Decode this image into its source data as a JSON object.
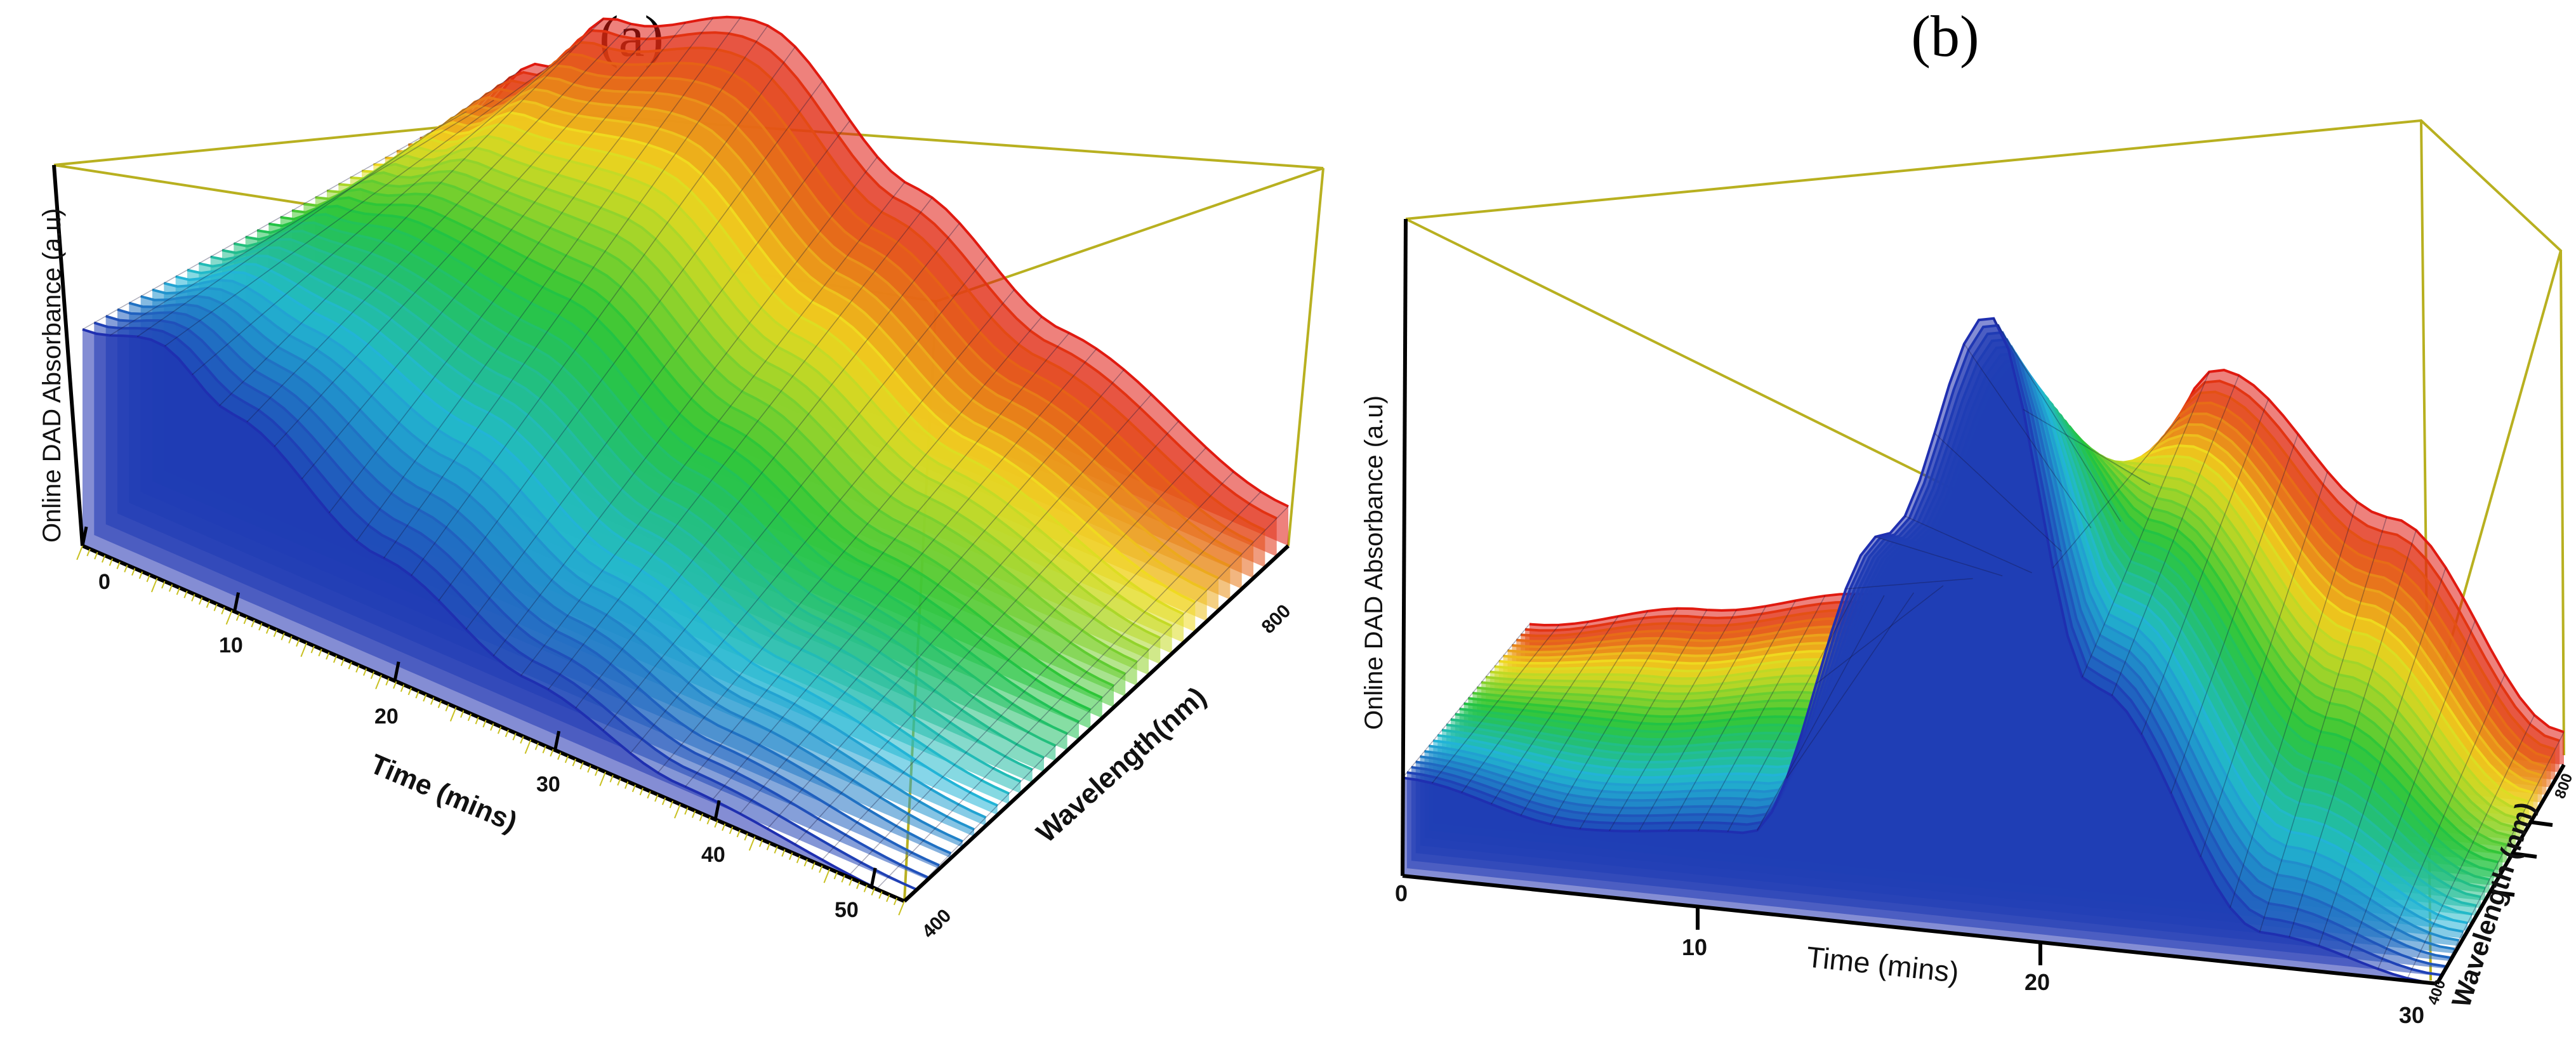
{
  "chart_data": [
    {
      "panel": "a",
      "panel_label": "(a)",
      "type": "surface",
      "zlabel": "Online DAD Absorbance (a.u)",
      "xlabel": "Time (mins)",
      "ylabel": "Wavelength(nm)",
      "x_ticks": [
        "0",
        "10",
        "20",
        "30",
        "40",
        "50"
      ],
      "y_ticks": [
        "400",
        "800"
      ],
      "xlim": [
        0,
        55
      ],
      "ylim": [
        400,
        800
      ],
      "description_values": {
        "x": [
          0,
          5,
          10,
          20,
          30,
          40,
          55
        ],
        "absorbance_at_400nm": [
          0.55,
          0.6,
          0.5,
          0.3,
          0.15,
          0.05,
          0.0
        ],
        "absorbance_at_800nm": [
          0.2,
          0.4,
          0.6,
          0.75,
          0.5,
          0.3,
          0.1
        ]
      },
      "colormap": [
        "#1f2fb0",
        "#22b8d8",
        "#22c43a",
        "#f0e020",
        "#e01a10"
      ]
    },
    {
      "panel": "b",
      "panel_label": "(b)",
      "type": "surface",
      "zlabel": "Online DAD Absorbance  (a.u)",
      "xlabel": "Time (mins)",
      "ylabel": "Wavelength (nm)",
      "x_ticks": [
        "0",
        "10",
        "20",
        "30"
      ],
      "y_ticks": [
        "400",
        "800"
      ],
      "xlim": [
        0,
        30
      ],
      "ylim": [
        400,
        800
      ],
      "description_values": {
        "x": [
          0,
          5,
          10,
          14,
          17,
          20,
          25,
          30
        ],
        "absorbance_at_400nm": [
          0.15,
          0.1,
          0.12,
          0.6,
          0.95,
          0.4,
          0.05,
          0.0
        ],
        "absorbance_at_800nm": [
          0.05,
          0.1,
          0.15,
          0.2,
          0.3,
          0.55,
          0.35,
          0.05
        ]
      },
      "colormap": [
        "#1f2fb0",
        "#22b8d8",
        "#22c43a",
        "#f0e020",
        "#e01a10"
      ]
    }
  ]
}
